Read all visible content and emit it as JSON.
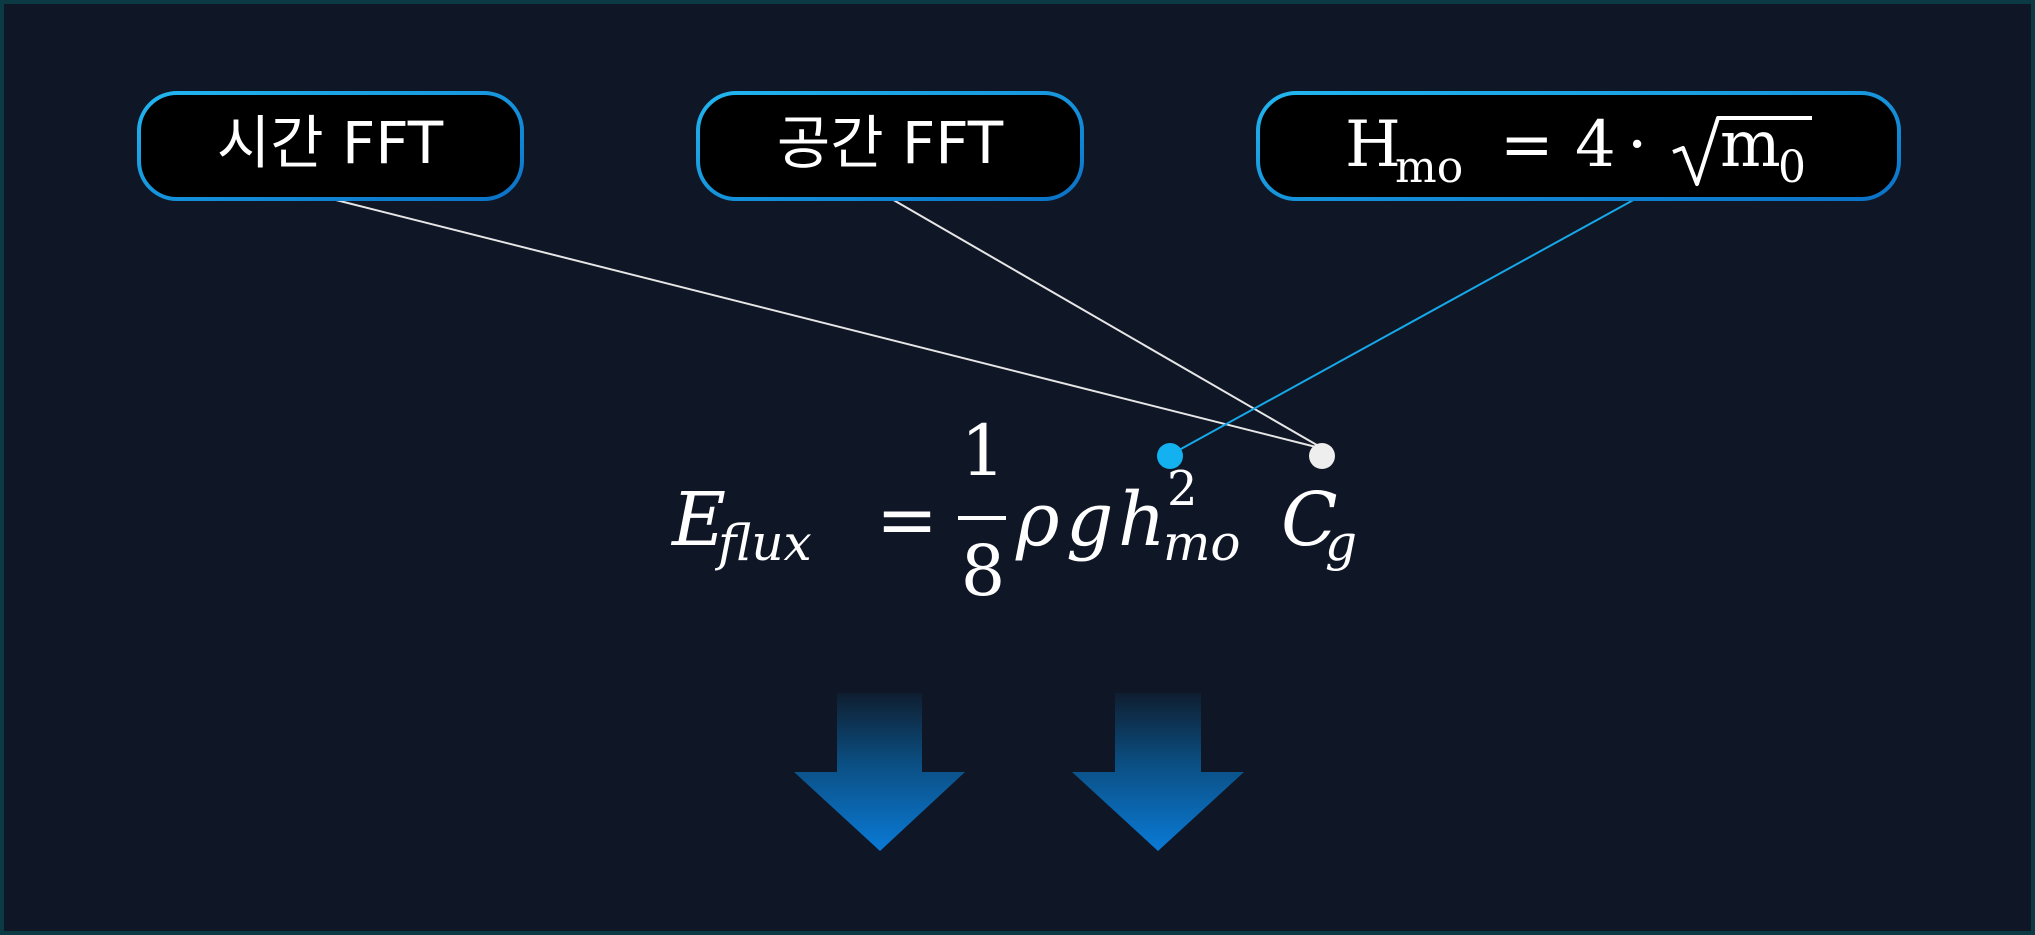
{
  "labels": {
    "time_fft": "시간 FFT",
    "space_fft": "공간 FFT",
    "hmo_lhs_base": "H",
    "hmo_lhs_sub": "mo",
    "hmo_eq": "=",
    "hmo_coef": "4",
    "hmo_dot": "·",
    "hmo_m": "m",
    "hmo_m_sub": "0"
  },
  "formula": {
    "lhs_base": "E",
    "lhs_sub": "flux",
    "eq": "=",
    "frac_num": "1",
    "frac_den": "8",
    "rho": "ρ",
    "g": "g",
    "h": "h",
    "h_sup": "2",
    "h_sub": "mo",
    "c": "C",
    "c_sub": "g"
  },
  "colors": {
    "background": "#0f1626",
    "frame": "#0b3a44",
    "box_fill": "#000000",
    "box_border": "#1aa7e6",
    "text": "#ffffff",
    "connector_white": "#e6e6e6",
    "connector_blue": "#16a8e8",
    "dot_blue": "#14b1f0",
    "dot_white": "#eeeeee",
    "arrow_top": "#0f1626",
    "arrow_bottom": "#0a7ad6"
  }
}
